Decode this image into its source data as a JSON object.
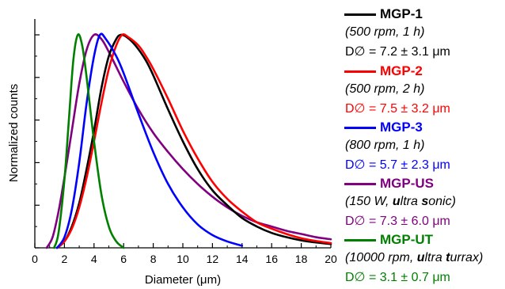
{
  "chart_data": {
    "type": "line",
    "title": "",
    "xlabel": "Diameter (μm)",
    "ylabel": "Normalized counts",
    "xlim": [
      0,
      20
    ],
    "ylim": [
      0,
      1.0
    ],
    "x_ticks": [
      "0",
      "2",
      "4",
      "6",
      "8",
      "10",
      "12",
      "14",
      "16",
      "18",
      "20"
    ],
    "y_tick_labels_shown": false,
    "grid": false,
    "legend_placement": "right-outside",
    "series": [
      {
        "name": "MGP-1",
        "condition": "(500 rpm, 1 h)",
        "size": "D∅ = 7.2 ± 3.1 μm",
        "color": "#000000",
        "x": [
          1.5,
          2,
          2.5,
          3,
          3.5,
          4,
          4.5,
          5,
          5.5,
          5.8,
          6.2,
          6.8,
          7.5,
          8,
          9,
          10,
          11,
          12,
          13,
          14,
          15,
          16,
          17,
          18,
          19,
          20
        ],
        "y": [
          0.0,
          0.03,
          0.1,
          0.21,
          0.37,
          0.55,
          0.75,
          0.9,
          0.98,
          1.0,
          0.99,
          0.95,
          0.88,
          0.81,
          0.65,
          0.5,
          0.37,
          0.27,
          0.2,
          0.14,
          0.1,
          0.07,
          0.05,
          0.035,
          0.025,
          0.018
        ]
      },
      {
        "name": "MGP-2",
        "condition": "(500 rpm, 2 h)",
        "size": "D∅ = 7.5 ± 3.2 μm",
        "color": "#ff0000",
        "x": [
          1.5,
          2,
          2.5,
          3,
          3.5,
          4,
          4.5,
          5,
          5.5,
          5.9,
          6.3,
          7,
          7.5,
          8,
          9,
          10,
          11,
          12,
          13,
          14,
          15,
          16,
          17,
          18,
          19,
          20
        ],
        "y": [
          0.0,
          0.03,
          0.09,
          0.19,
          0.33,
          0.5,
          0.68,
          0.84,
          0.95,
          1.0,
          0.99,
          0.95,
          0.9,
          0.84,
          0.7,
          0.55,
          0.42,
          0.31,
          0.23,
          0.17,
          0.12,
          0.09,
          0.065,
          0.045,
          0.032,
          0.022
        ]
      },
      {
        "name": "MGP-3",
        "condition": "(800 rpm, 1 h)",
        "size": "D∅ = 5.7 ± 2.3 μm",
        "color": "#0000ff",
        "x": [
          1.5,
          2,
          2.5,
          3,
          3.5,
          4,
          4.4,
          4.8,
          5.5,
          6,
          7,
          8,
          9,
          10,
          11,
          12,
          13,
          14
        ],
        "y": [
          0.0,
          0.05,
          0.18,
          0.4,
          0.68,
          0.9,
          1.0,
          0.98,
          0.9,
          0.82,
          0.63,
          0.45,
          0.3,
          0.19,
          0.11,
          0.06,
          0.03,
          0.01
        ]
      },
      {
        "name": "MGP-US",
        "condition": "(150 W, ultra sonic)",
        "size": "D∅ = 7.3 ± 6.0 μm",
        "color": "#800080",
        "x": [
          0.8,
          1.2,
          1.6,
          2,
          2.5,
          3,
          3.5,
          4,
          4.5,
          5,
          6,
          7,
          8,
          9,
          10,
          11,
          12,
          13,
          14,
          15,
          16,
          17,
          18,
          19,
          20
        ],
        "y": [
          0.0,
          0.05,
          0.17,
          0.33,
          0.55,
          0.77,
          0.93,
          1.0,
          0.98,
          0.92,
          0.78,
          0.65,
          0.54,
          0.45,
          0.37,
          0.3,
          0.24,
          0.19,
          0.15,
          0.12,
          0.1,
          0.08,
          0.065,
          0.05,
          0.04
        ]
      },
      {
        "name": "MGP-UT",
        "condition": "(10000 rpm, ultra turrax)",
        "size": "D∅ = 3.1 ± 0.7 μm",
        "color": "#008000",
        "x": [
          1.3,
          1.6,
          2,
          2.3,
          2.6,
          2.9,
          3.2,
          3.5,
          4,
          4.5,
          5,
          5.5,
          6
        ],
        "y": [
          0.0,
          0.07,
          0.32,
          0.6,
          0.88,
          1.0,
          0.95,
          0.8,
          0.5,
          0.25,
          0.1,
          0.03,
          0.0
        ]
      }
    ]
  }
}
